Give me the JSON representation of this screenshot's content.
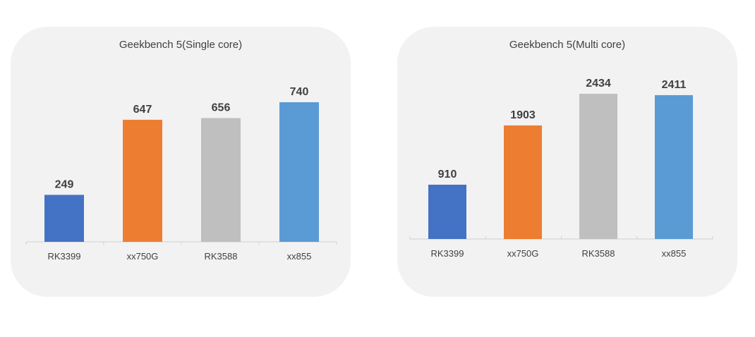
{
  "chart_data": [
    {
      "type": "bar",
      "title": "Geekbench 5(Single core)",
      "categories": [
        "RK3399",
        "xx750G",
        "RK3588",
        "xx855"
      ],
      "values": [
        249,
        647,
        656,
        740
      ],
      "colors": [
        "#4472c4",
        "#ed7d31",
        "#bfbfbf",
        "#5b9bd5"
      ],
      "ylim": [
        0,
        740
      ],
      "grid": false,
      "legend": "none",
      "xlabel": "",
      "ylabel": ""
    },
    {
      "type": "bar",
      "title": "Geekbench 5(Multi core)",
      "categories": [
        "RK3399",
        "xx750G",
        "RK3588",
        "xx855"
      ],
      "values": [
        910,
        1903,
        2434,
        2411
      ],
      "colors": [
        "#4472c4",
        "#ed7d31",
        "#bfbfbf",
        "#5b9bd5"
      ],
      "ylim": [
        0,
        2434
      ],
      "grid": false,
      "legend": "none",
      "xlabel": "",
      "ylabel": ""
    }
  ]
}
